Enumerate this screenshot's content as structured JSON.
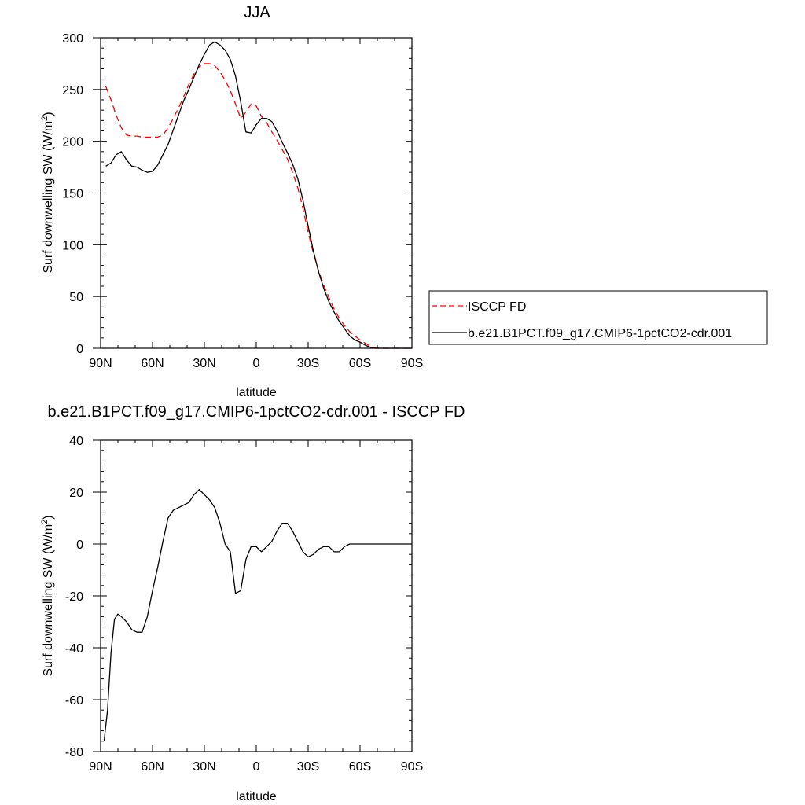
{
  "chart_data": [
    {
      "type": "line",
      "title": "JJA",
      "xlabel": "latitude",
      "ylabel": "Surf downwelling SW (W/m",
      "ylabel_sup": "2",
      "ylabel_close": ")",
      "xlim": [
        90,
        -90
      ],
      "ylim": [
        0,
        300
      ],
      "xticks": [
        90,
        60,
        30,
        0,
        -30,
        -60,
        -90
      ],
      "xtick_labels": [
        "90N",
        "60N",
        "30N",
        "0",
        "30S",
        "60S",
        "90S"
      ],
      "yticks": [
        0,
        50,
        100,
        150,
        200,
        250,
        300
      ],
      "ytick_labels": [
        "0",
        "50",
        "100",
        "150",
        "200",
        "250",
        "300"
      ],
      "grid": false,
      "legend_position": "right",
      "series": [
        {
          "name": "ISCCP FD",
          "color": "#ff0000",
          "dash": "dashed",
          "x": [
            87,
            84,
            81,
            78,
            75,
            72,
            69,
            66,
            63,
            60,
            57,
            54,
            51,
            48,
            45,
            42,
            39,
            36,
            33,
            30,
            27,
            24,
            21,
            18,
            15,
            12,
            9,
            6,
            3,
            0,
            -3,
            -6,
            -9,
            -12,
            -15,
            -18,
            -21,
            -24,
            -27,
            -30,
            -33,
            -36,
            -39,
            -42,
            -45,
            -48,
            -51,
            -54,
            -57,
            -60,
            -63,
            -66,
            -69,
            -72,
            -75,
            -78,
            -81,
            -84,
            -87,
            -90
          ],
          "y": [
            253,
            240,
            225,
            213,
            206,
            205,
            205,
            204,
            204,
            204,
            204,
            206,
            213,
            222,
            232,
            243,
            255,
            265,
            272,
            275,
            275,
            273,
            267,
            259,
            249,
            236,
            222,
            228,
            236,
            234,
            224,
            218,
            209,
            201,
            192,
            183,
            170,
            155,
            135,
            112,
            92,
            75,
            61,
            49,
            38,
            29,
            22,
            16,
            12,
            8,
            5,
            2,
            0.5,
            0,
            0,
            0,
            0,
            0,
            0,
            0
          ]
        },
        {
          "name": "b.e21.B1PCT.f09_g17.CMIP6-1pctCO2-cdr.001",
          "color": "#000000",
          "dash": "solid",
          "x": [
            87,
            84,
            81,
            78,
            75,
            72,
            69,
            66,
            63,
            60,
            57,
            54,
            51,
            48,
            45,
            42,
            39,
            36,
            33,
            30,
            27,
            24,
            21,
            18,
            15,
            12,
            9,
            6,
            3,
            0,
            -3,
            -6,
            -9,
            -12,
            -15,
            -18,
            -21,
            -24,
            -27,
            -30,
            -33,
            -36,
            -39,
            -42,
            -45,
            -48,
            -51,
            -54,
            -57,
            -60,
            -63,
            -66,
            -69,
            -72,
            -75,
            -78,
            -81,
            -84,
            -87,
            -90
          ],
          "y": [
            176,
            179,
            187,
            190,
            182,
            176,
            175,
            172,
            170,
            171,
            177,
            187,
            197,
            211,
            225,
            239,
            250,
            262,
            274,
            284,
            293,
            296,
            293,
            288,
            279,
            263,
            238,
            209,
            208,
            216,
            222,
            222,
            219,
            210,
            199,
            189,
            178,
            164,
            143,
            118,
            94,
            74,
            58,
            45,
            35,
            26,
            19,
            12,
            8,
            6,
            3,
            1,
            0,
            0,
            0,
            0,
            0,
            0,
            0,
            0
          ]
        }
      ]
    },
    {
      "type": "line",
      "title": "b.e21.B1PCT.f09_g17.CMIP6-1pctCO2-cdr.001 - ISCCP FD",
      "xlabel": "latitude",
      "ylabel": "Surf downwelling SW (W/m",
      "ylabel_sup": "2",
      "ylabel_close": ")",
      "xlim": [
        90,
        -90
      ],
      "ylim": [
        -80,
        40
      ],
      "xticks": [
        90,
        60,
        30,
        0,
        -30,
        -60,
        -90
      ],
      "xtick_labels": [
        "90N",
        "60N",
        "30N",
        "0",
        "30S",
        "60S",
        "90S"
      ],
      "yticks": [
        -80,
        -60,
        -40,
        -20,
        0,
        20,
        40
      ],
      "ytick_labels": [
        "-80",
        "-60",
        "-40",
        "-20",
        "0",
        "20",
        "40"
      ],
      "grid": false,
      "series": [
        {
          "color": "#000000",
          "dash": "solid",
          "x": [
            88,
            86,
            84,
            82,
            80,
            78,
            75,
            72,
            69,
            66,
            63,
            60,
            57,
            54,
            51,
            48,
            45,
            42,
            39,
            36,
            33,
            30,
            27,
            24,
            21,
            18,
            15,
            12,
            9,
            6,
            3,
            0,
            -3,
            -6,
            -9,
            -12,
            -15,
            -18,
            -21,
            -24,
            -27,
            -30,
            -33,
            -36,
            -39,
            -42,
            -45,
            -48,
            -51,
            -54,
            -57,
            -60,
            -63,
            -66,
            -69,
            -72,
            -75,
            -78,
            -81,
            -84,
            -87,
            -90
          ],
          "y": [
            -76,
            -64,
            -42,
            -29,
            -27,
            -28,
            -30,
            -33,
            -34,
            -34,
            -28,
            -18,
            -9,
            1,
            10,
            13,
            14,
            15,
            16,
            19,
            21,
            19,
            17,
            14,
            8,
            0,
            -3,
            -19,
            -18,
            -6,
            -1,
            -1,
            -3,
            -1,
            1,
            5,
            8,
            8,
            5,
            1,
            -3,
            -5,
            -4,
            -2,
            -1,
            -1,
            -3,
            -3,
            -1,
            0,
            0,
            0,
            0,
            0,
            0,
            0,
            0,
            0,
            0,
            0,
            0,
            0
          ]
        }
      ]
    }
  ]
}
